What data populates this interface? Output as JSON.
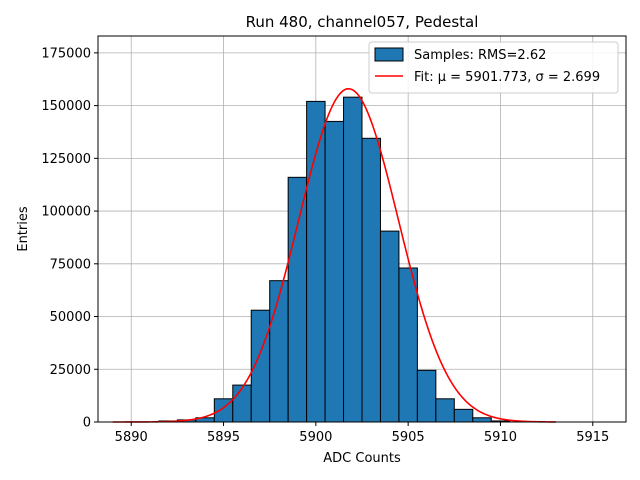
{
  "chart_data": {
    "type": "bar",
    "title": "Run 480, channel057, Pedestal",
    "xlabel": "ADC Counts",
    "ylabel": "Entries",
    "xlim": [
      5888.2,
      5916.8
    ],
    "ylim": [
      0,
      183000
    ],
    "xticks": [
      5890,
      5895,
      5900,
      5905,
      5910,
      5915
    ],
    "yticks": [
      0,
      25000,
      50000,
      75000,
      100000,
      125000,
      150000,
      175000
    ],
    "grid": true,
    "legend_position": "top-right",
    "bin_width": 1,
    "bins": [
      {
        "x": 5892,
        "count": 500
      },
      {
        "x": 5893,
        "count": 1000
      },
      {
        "x": 5894,
        "count": 2000
      },
      {
        "x": 5895,
        "count": 11000
      },
      {
        "x": 5896,
        "count": 17500
      },
      {
        "x": 5897,
        "count": 53000
      },
      {
        "x": 5898,
        "count": 67000
      },
      {
        "x": 5899,
        "count": 116000
      },
      {
        "x": 5900,
        "count": 152000
      },
      {
        "x": 5901,
        "count": 142500
      },
      {
        "x": 5902,
        "count": 154000
      },
      {
        "x": 5903,
        "count": 134500
      },
      {
        "x": 5904,
        "count": 90500
      },
      {
        "x": 5905,
        "count": 73000
      },
      {
        "x": 5906,
        "count": 24500
      },
      {
        "x": 5907,
        "count": 11000
      },
      {
        "x": 5908,
        "count": 6000
      },
      {
        "x": 5909,
        "count": 2000
      },
      {
        "x": 5910,
        "count": 500
      }
    ],
    "fit": {
      "mu": 5901.773,
      "sigma": 2.699,
      "amplitude": 158000,
      "x_range": [
        5889,
        5913
      ]
    },
    "series": [
      {
        "name": "Samples: RMS=2.62",
        "color": "#1f77b4"
      },
      {
        "name": "Fit: μ = 5901.773, σ = 2.699",
        "color": "#ff0000"
      }
    ]
  }
}
